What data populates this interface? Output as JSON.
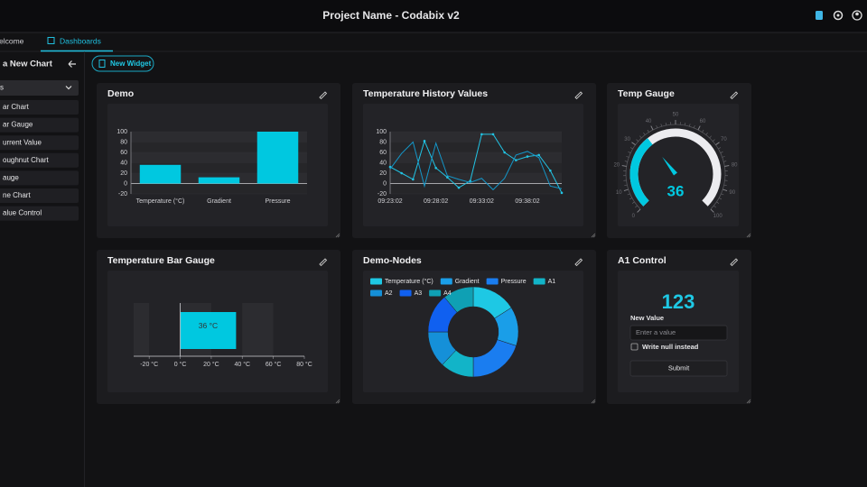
{
  "header": {
    "title": "Project Name - Codabix v2"
  },
  "tabs": [
    "elcome",
    "Dashboards"
  ],
  "sidebar": {
    "title": "a New Chart",
    "dropdown": "s",
    "items": [
      "ar Chart",
      "ar Gauge",
      "urrent Value",
      "oughnut Chart",
      "auge",
      "ne Chart",
      "alue Control"
    ]
  },
  "toolbar": {
    "new_widget": "New Widget"
  },
  "chart_data": [
    {
      "type": "bar",
      "title": "Demo",
      "categories": [
        "Temperature (°C)",
        "Gradient",
        "Pressure"
      ],
      "values": [
        36,
        12,
        100
      ],
      "color": "#00c8e0",
      "ylim": [
        -20,
        100
      ],
      "yticks": [
        -20,
        0,
        20,
        40,
        60,
        80,
        100
      ]
    },
    {
      "type": "line",
      "title": "Temperature History Values",
      "categories": [
        "09:23:02",
        null,
        null,
        null,
        "09:28:02",
        null,
        null,
        null,
        "09:33:02",
        null,
        null,
        null,
        "09:38:02",
        null,
        null,
        null
      ],
      "series": [
        {
          "color": "#22c4e4",
          "values": [
            32,
            20,
            8,
            82,
            30,
            12,
            -8,
            5,
            95,
            95,
            60,
            45,
            52,
            55,
            25,
            -18
          ]
        },
        {
          "color": "#1496c8",
          "values": [
            28,
            58,
            80,
            -5,
            78,
            15,
            8,
            2,
            10,
            -12,
            10,
            55,
            62,
            50,
            -5,
            -10
          ]
        }
      ],
      "ylim": [
        -20,
        100
      ],
      "yticks": [
        -20,
        0,
        20,
        40,
        60,
        80,
        100
      ]
    },
    {
      "type": "gauge",
      "title": "Temp Gauge",
      "value": 36,
      "color": "#00c8e0",
      "ylim": [
        0,
        100
      ],
      "yticks": [
        0,
        10,
        20,
        30,
        40,
        50,
        60,
        70,
        80,
        90,
        100
      ]
    },
    {
      "type": "hbar",
      "title": "Temperature Bar Gauge",
      "values": [
        36
      ],
      "value_labels": [
        "36 °C"
      ],
      "color": "#00c8e0",
      "xlim": [
        -30,
        80
      ],
      "xticks": [
        {
          "value": -20,
          "label": "-20 °C"
        },
        {
          "value": 0,
          "label": "0 °C"
        },
        {
          "value": 20,
          "label": "20 °C"
        },
        {
          "value": 40,
          "label": "40 °C"
        },
        {
          "value": 60,
          "label": "60 °C"
        },
        {
          "value": 80,
          "label": "80 °C"
        }
      ]
    },
    {
      "type": "doughnut",
      "title": "Demo-Nodes",
      "categories": [
        "Temperature (°C)",
        "Gradient",
        "Pressure",
        "A1",
        "A2",
        "A3",
        "A4"
      ],
      "values": [
        16,
        14,
        20,
        12,
        13,
        14,
        11
      ],
      "colors": [
        "#1ec8e4",
        "#1a9ee8",
        "#1a7df0",
        "#12b4c8",
        "#1590d8",
        "#1060f0",
        "#0fa0b4"
      ]
    }
  ],
  "control": {
    "title": "A1 Control",
    "value": 123,
    "label": "New Value",
    "placeholder": "Enter a value",
    "checkbox": "Write null instead",
    "button": "Submit"
  }
}
